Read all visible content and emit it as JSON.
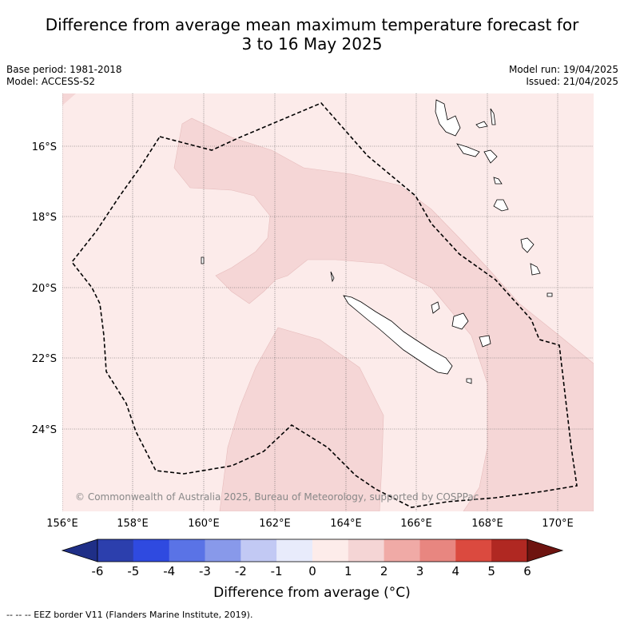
{
  "title_line1": "Difference from average mean maximum temperature forecast for",
  "title_line2": "3 to 16 May 2025",
  "meta": {
    "base_period": "Base period: 1981-2018",
    "model": "Model: ACCESS-S2",
    "model_run": "Model run: 19/04/2025",
    "issued": "Issued: 21/04/2025"
  },
  "axes": {
    "lon_labels": [
      "156°E",
      "158°E",
      "160°E",
      "162°E",
      "164°E",
      "166°E",
      "168°E",
      "170°E"
    ],
    "lat_labels": [
      "16°S",
      "18°S",
      "20°S",
      "22°S",
      "24°S"
    ]
  },
  "copyright": "© Commonwealth of Australia 2025, Bureau of Meteorology, supported by COSPPac",
  "colorbar": {
    "ticks": [
      "-6",
      "-5",
      "-4",
      "-3",
      "-2",
      "-1",
      "0",
      "1",
      "2",
      "3",
      "4",
      "5",
      "6"
    ],
    "colors": [
      "#1f2f87",
      "#2c3fad",
      "#2f4ae0",
      "#5a73e6",
      "#8899ea",
      "#c2c9f4",
      "#e8ebfb",
      "#fdecea",
      "#f5d5d5",
      "#f0aaa6",
      "#e88680",
      "#db4a3f",
      "#b02822",
      "#6e1410"
    ],
    "label": "Difference from average (°C)"
  },
  "legend_footer": "-- -- -- EEZ border V11 (Flanders Marine Institute, 2019).",
  "shading": {
    "base_color": "#fcebea",
    "band_color": "#f5d6d6",
    "land_color": "#ffffff"
  }
}
